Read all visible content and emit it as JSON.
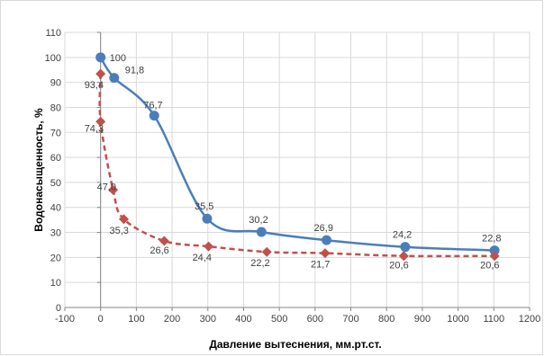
{
  "chart_data": {
    "type": "line",
    "title": "",
    "xlabel": "Давление вытеснения, мм.рт.ст.",
    "ylabel": "Водонасыщенность, %",
    "xlim": [
      -100,
      1200
    ],
    "ylim": [
      0,
      110
    ],
    "xticks": [
      "-100",
      "0",
      "100",
      "200",
      "300",
      "400",
      "500",
      "600",
      "700",
      "800",
      "900",
      "1000",
      "1100",
      "1200"
    ],
    "yticks": [
      "0",
      "10",
      "20",
      "30",
      "40",
      "50",
      "60",
      "70",
      "80",
      "90",
      "100",
      "110"
    ],
    "grid": true,
    "legend": "none",
    "series": [
      {
        "color": "#4a7ebb",
        "marker": "circle",
        "line_style": "solid",
        "smooth": true,
        "x": [
          0,
          38,
          150,
          298,
          450,
          632,
          852,
          1102
        ],
        "y": [
          100,
          91.8,
          76.7,
          35.5,
          30.2,
          26.9,
          24.2,
          22.8
        ],
        "labels": [
          "100",
          "91,8",
          "76,7",
          "35,5",
          "30,2",
          "26,9",
          "24,2",
          "22,8"
        ]
      },
      {
        "color": "#c0504d",
        "marker": "diamond",
        "line_style": "dashed",
        "smooth": true,
        "x": [
          0,
          0,
          35,
          65,
          178,
          302,
          465,
          628,
          848,
          1102
        ],
        "y": [
          93.4,
          74.3,
          47.0,
          35.3,
          26.6,
          24.4,
          22.2,
          21.7,
          20.6,
          20.6
        ],
        "labels": [
          "93,4",
          "74,3",
          "47,0",
          "35,3",
          "26,6",
          "24,4",
          "22,2",
          "21,7",
          "20,6",
          "20,6"
        ]
      }
    ]
  }
}
